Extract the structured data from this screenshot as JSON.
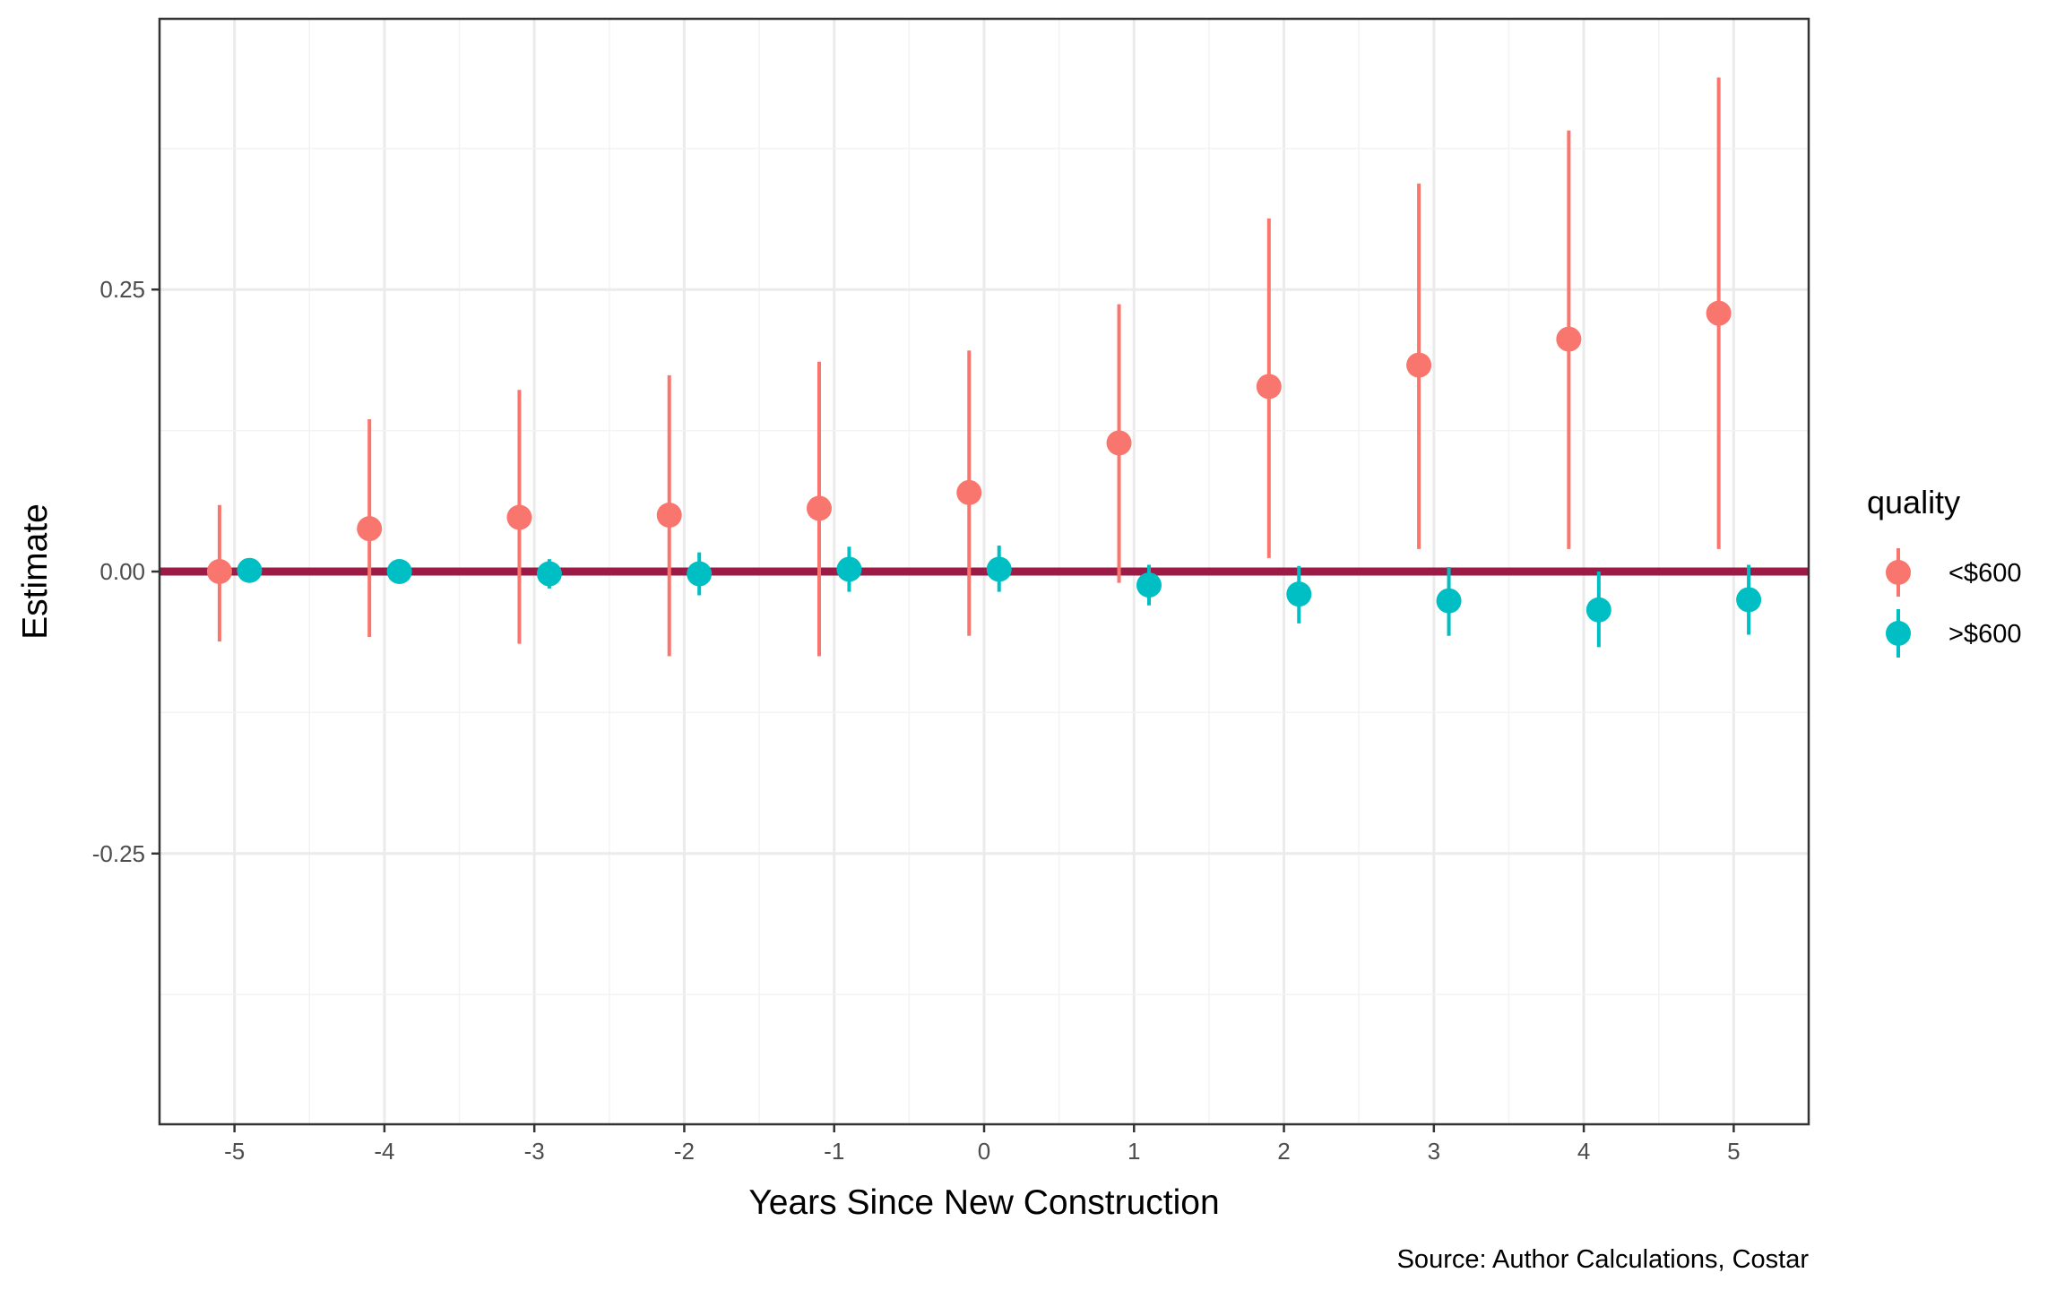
{
  "chart_data": {
    "type": "scatter",
    "subtype": "point-range with dodged series",
    "title": "",
    "xlabel": "Years Since New Construction",
    "ylabel": "Estimate",
    "caption": "Source: Author Calculations, Costar",
    "x_ticks": [
      -5,
      -4,
      -3,
      -2,
      -1,
      0,
      1,
      2,
      3,
      4,
      5
    ],
    "y_ticks": [
      -0.25,
      0.0,
      0.25
    ],
    "y_tick_labels": [
      "-0.25",
      "0.00",
      "0.25"
    ],
    "xlim": [
      -5.5,
      5.5
    ],
    "ylim": [
      -0.49,
      0.49
    ],
    "grid": true,
    "reference_line": {
      "y": 0,
      "color": "#9B1B46"
    },
    "legend": {
      "title": "quality",
      "position": "right"
    },
    "series": [
      {
        "name": "<$600",
        "color": "#F8766D",
        "x": [
          -5,
          -4,
          -3,
          -2,
          -1,
          0,
          1,
          2,
          3,
          4,
          5
        ],
        "y": [
          0.0,
          0.038,
          0.048,
          0.05,
          0.056,
          0.07,
          0.114,
          0.164,
          0.183,
          0.206,
          0.229
        ],
        "ymin": [
          -0.062,
          -0.058,
          -0.064,
          -0.075,
          -0.075,
          -0.057,
          -0.01,
          0.012,
          0.02,
          0.02,
          0.02
        ],
        "ymax": [
          0.059,
          0.135,
          0.161,
          0.174,
          0.186,
          0.196,
          0.237,
          0.313,
          0.344,
          0.391,
          0.438
        ]
      },
      {
        "name": ">$600",
        "color": "#00BFC4",
        "x": [
          -5,
          -4,
          -3,
          -2,
          -1,
          0,
          1,
          2,
          3,
          4,
          5
        ],
        "y": [
          0.001,
          0.0,
          -0.002,
          -0.002,
          0.002,
          0.002,
          -0.012,
          -0.02,
          -0.026,
          -0.034,
          -0.025
        ],
        "ymin": [
          0.001,
          0.0,
          -0.015,
          -0.021,
          -0.018,
          -0.018,
          -0.03,
          -0.046,
          -0.057,
          -0.067,
          -0.056
        ],
        "ymax": [
          0.001,
          0.0,
          0.011,
          0.017,
          0.022,
          0.023,
          0.006,
          0.005,
          0.004,
          0.0,
          0.006
        ]
      }
    ]
  }
}
